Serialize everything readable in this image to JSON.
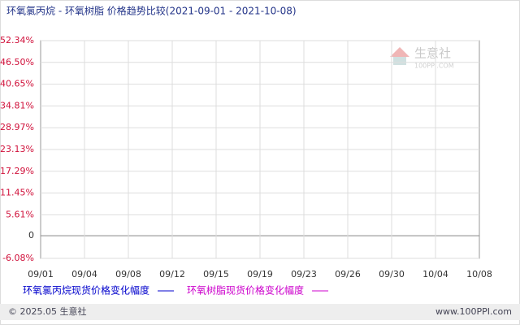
{
  "chart_data": {
    "type": "line",
    "title": "环氧氯丙烷 - 环氧树脂 价格趋势比较(2021-09-01 - 2021-10-08)",
    "categories": [
      "09/01",
      null,
      null,
      "09/04",
      null,
      null,
      "09/08",
      null,
      null,
      "09/12",
      null,
      null,
      "09/15",
      null,
      null,
      "09/19",
      null,
      null,
      "09/23",
      null,
      null,
      "09/26",
      null,
      null,
      "09/30",
      null,
      null,
      "10/04",
      null,
      null,
      "10/08"
    ],
    "series": [
      {
        "name": "环氧氯丙烷现货价格变化幅度",
        "color": "#0000cc",
        "values": [
          0,
          0.5,
          1.2,
          1.2,
          2.6,
          6.1,
          8.9,
          9.6,
          9.6,
          9.6,
          9.6,
          29,
          40.8,
          40.8,
          40.8,
          40.8,
          40.8,
          40.8,
          40.8,
          42.5,
          44,
          47.5,
          45.8,
          45.8,
          46.5,
          46.5,
          46.5,
          46.5,
          46.5,
          46.5,
          46.5
        ]
      },
      {
        "name": "环氧树脂现货价格变化幅度",
        "color": "#cc00cc",
        "values": [
          0,
          -0.3,
          -0.3,
          -0.3,
          -0.4,
          -0.7,
          -0.7,
          -1,
          -1.6,
          -1.6,
          -1.6,
          0,
          0,
          3.2,
          3.5,
          3.5,
          3.5,
          3.5,
          4.1,
          4.1,
          4.1,
          5.6,
          5.6,
          5.6,
          5.6,
          5.6,
          5.6,
          5.6,
          5.6,
          5.6,
          5.6
        ]
      }
    ],
    "ylim": [
      -6.08,
      52.34
    ],
    "yticks": [
      {
        "value": -6.08,
        "label": "-6.08%"
      },
      0,
      {
        "value": 5.61,
        "label": "5.61%"
      },
      {
        "value": 11.45,
        "label": "11.45%"
      },
      {
        "value": 17.29,
        "label": "17.29%"
      },
      {
        "value": 23.13,
        "label": "23.13%"
      },
      {
        "value": 28.97,
        "label": "28.97%"
      },
      {
        "value": 34.81,
        "label": "34.81%"
      },
      {
        "value": 40.65,
        "label": "40.65%"
      },
      {
        "value": 46.5,
        "label": "46.50%"
      },
      {
        "value": 52.34,
        "label": "52.34%"
      }
    ],
    "grid": true,
    "legend": "bottom"
  },
  "watermark": {
    "name": "生意社",
    "site": "100PPI.COM"
  },
  "footer": {
    "copyright": "© 2025.05 生意社",
    "url": "www.100PPI.com"
  }
}
